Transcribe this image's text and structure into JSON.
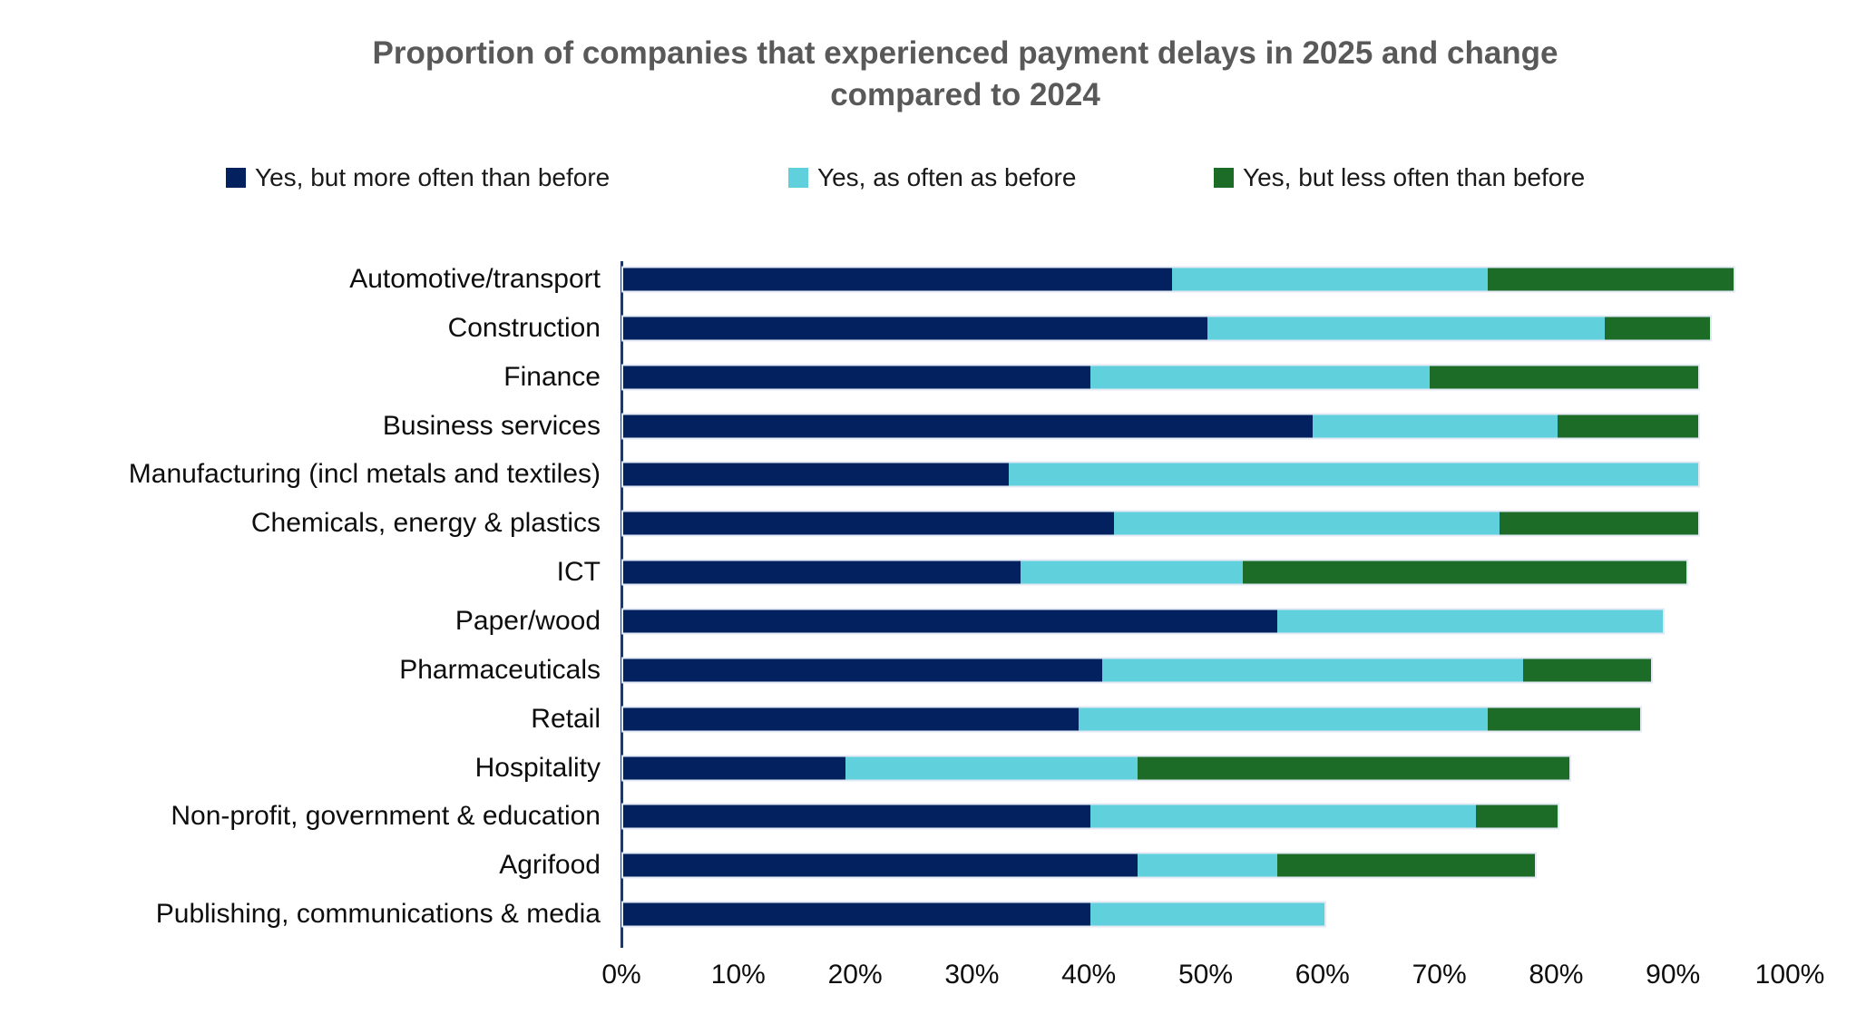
{
  "page": {
    "title_line1": "Proportion of companies that experienced payment delays in 2025 and change",
    "title_line2": "compared to 2024"
  },
  "colors": {
    "background": "#FFFFFF",
    "title_text": "#595959",
    "axis_line": "#1F3864",
    "label_text": "#0D0D0D"
  },
  "chart_data": {
    "type": "bar",
    "orientation": "horizontal",
    "stacked": true,
    "title": "Proportion of companies that experienced payment delays in 2025 and change compared to 2024",
    "xlabel": "",
    "ylabel": "",
    "xlim": [
      0,
      100
    ],
    "x_ticks": [
      "0%",
      "10%",
      "20%",
      "30%",
      "40%",
      "50%",
      "60%",
      "70%",
      "80%",
      "90%",
      "100%"
    ],
    "grid": false,
    "legend_position": "top",
    "categories": [
      "Automotive/transport",
      "Construction",
      "Finance",
      "Business services",
      "Manufacturing (incl metals and textiles)",
      "Chemicals, energy & plastics",
      "ICT",
      "Paper/wood",
      "Pharmaceuticals",
      "Retail",
      "Hospitality",
      "Non-profit, government & education",
      "Agrifood",
      "Publishing, communications & media"
    ],
    "series": [
      {
        "name": "Yes, but more often than before",
        "color": "#02215E",
        "values": [
          47,
          50,
          40,
          59,
          33,
          42,
          34,
          56,
          41,
          39,
          19,
          40,
          44,
          40
        ]
      },
      {
        "name": "Yes, as often as before",
        "color": "#5FD0DC",
        "values": [
          27,
          34,
          29,
          21,
          59,
          33,
          19,
          33,
          36,
          35,
          25,
          33,
          12,
          20
        ]
      },
      {
        "name": "Yes, but less often than before",
        "color": "#1C6B26",
        "values": [
          21,
          9,
          23,
          12,
          0,
          17,
          38,
          0,
          11,
          13,
          37,
          7,
          22,
          0
        ]
      }
    ],
    "totals": [
      95,
      93,
      92,
      92,
      92,
      92,
      91,
      89,
      88,
      87,
      81,
      80,
      78,
      60
    ]
  }
}
